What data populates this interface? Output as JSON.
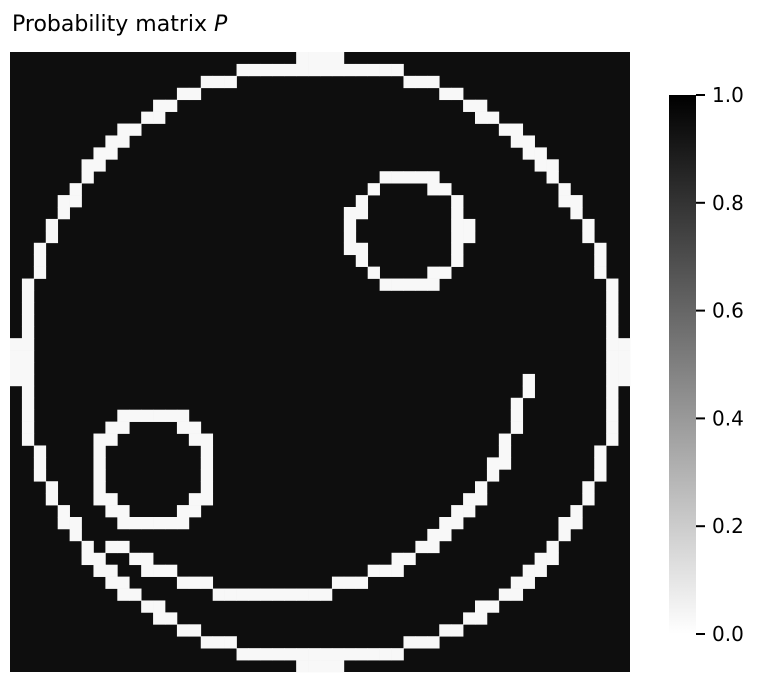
{
  "chart_data": {
    "type": "heatmap",
    "title": "Probability matrix ",
    "title_italic": "P",
    "rows": 52,
    "cols": 52,
    "value_range": [
      0,
      1
    ],
    "colormap": "Greys (0 = white, 1 = black)",
    "background_value": 1.0,
    "ring_value": 0.0,
    "colorbar": {
      "ticks": [
        1.0,
        0.8,
        0.6,
        0.4,
        0.2,
        0.0
      ],
      "tick_labels": [
        "1.0",
        "0.8",
        "0.6",
        "0.4",
        "0.2",
        "0.0"
      ]
    },
    "x_ticks": "none",
    "y_ticks": "none"
  }
}
